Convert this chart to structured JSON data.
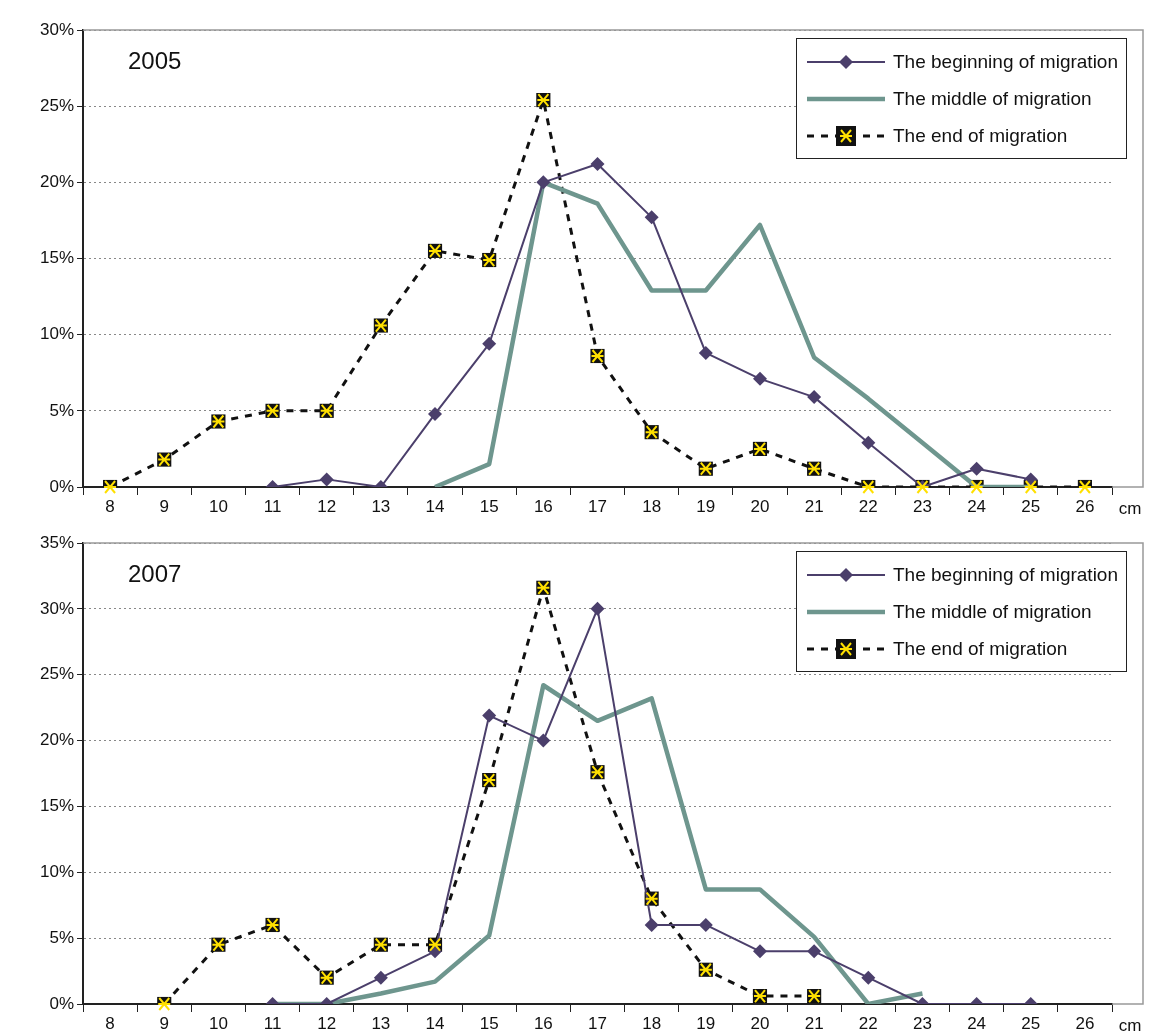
{
  "chart_data": [
    {
      "type": "line",
      "title": "2005",
      "xlabel": "cm",
      "categories": [
        "8",
        "9",
        "10",
        "11",
        "12",
        "13",
        "14",
        "15",
        "16",
        "17",
        "18",
        "19",
        "20",
        "21",
        "22",
        "23",
        "24",
        "25",
        "26"
      ],
      "series": [
        {
          "name": "The beginning of migration",
          "color": "#4b3f6b",
          "marker": "diamond",
          "line_style": "solid",
          "values": [
            null,
            null,
            null,
            0,
            0.5,
            0,
            4.8,
            9.4,
            20,
            21.2,
            17.7,
            8.8,
            7.1,
            5.9,
            2.9,
            0,
            1.2,
            0.5,
            null
          ]
        },
        {
          "name": "The middle of migration",
          "color": "#6e968e",
          "marker": "none",
          "line_style": "solid",
          "values": [
            null,
            null,
            null,
            null,
            null,
            null,
            0,
            1.5,
            20,
            18.6,
            12.9,
            12.9,
            17.2,
            8.5,
            5.8,
            2.9,
            0,
            0,
            null
          ]
        },
        {
          "name": "The end of migration",
          "color": "#111111",
          "marker": "square",
          "line_style": "dashed",
          "values": [
            0,
            1.8,
            4.3,
            5,
            5,
            10.6,
            15.5,
            14.9,
            25.4,
            8.6,
            3.6,
            1.2,
            2.5,
            1.2,
            0,
            0,
            0,
            0,
            0
          ]
        }
      ],
      "ylim": [
        0,
        30
      ],
      "yticks": [
        {
          "value": 0,
          "label": "0%"
        },
        {
          "value": 5,
          "label": "5%"
        },
        {
          "value": 10,
          "label": "10%"
        },
        {
          "value": 15,
          "label": "15%"
        },
        {
          "value": 20,
          "label": "20%"
        },
        {
          "value": 25,
          "label": "25%"
        },
        {
          "value": 30,
          "label": "30%"
        }
      ],
      "grid": "y",
      "legend": "top right"
    },
    {
      "type": "line",
      "title": "2007",
      "xlabel": "cm",
      "categories": [
        "8",
        "9",
        "10",
        "11",
        "12",
        "13",
        "14",
        "15",
        "16",
        "17",
        "18",
        "19",
        "20",
        "21",
        "22",
        "23",
        "24",
        "25",
        "26"
      ],
      "series": [
        {
          "name": "The beginning of migration",
          "color": "#4b3f6b",
          "marker": "diamond",
          "line_style": "solid",
          "values": [
            null,
            null,
            null,
            0,
            0,
            2,
            4,
            21.9,
            20,
            30,
            6,
            6,
            4,
            4,
            2,
            0,
            0,
            0,
            null
          ]
        },
        {
          "name": "The middle of migration",
          "color": "#6e968e",
          "marker": "none",
          "line_style": "solid",
          "values": [
            null,
            null,
            null,
            0,
            0,
            0.8,
            1.7,
            5.2,
            24.2,
            21.5,
            23.2,
            8.7,
            8.7,
            5.1,
            0,
            0.8,
            null,
            null,
            null
          ]
        },
        {
          "name": "The end of migration",
          "color": "#111111",
          "marker": "square",
          "line_style": "dashed",
          "values": [
            null,
            0,
            4.5,
            6,
            2,
            4.5,
            4.5,
            17,
            31.6,
            17.6,
            8,
            2.6,
            0.6,
            0.6,
            null,
            null,
            null,
            null,
            null
          ]
        }
      ],
      "ylim": [
        0,
        35
      ],
      "yticks": [
        {
          "value": 0,
          "label": "0%"
        },
        {
          "value": 5,
          "label": "5%"
        },
        {
          "value": 10,
          "label": "10%"
        },
        {
          "value": 15,
          "label": "15%"
        },
        {
          "value": 20,
          "label": "20%"
        },
        {
          "value": 25,
          "label": "25%"
        },
        {
          "value": 30,
          "label": "30%"
        },
        {
          "value": 35,
          "label": "35%"
        }
      ],
      "grid": "y",
      "legend": "top right"
    }
  ]
}
